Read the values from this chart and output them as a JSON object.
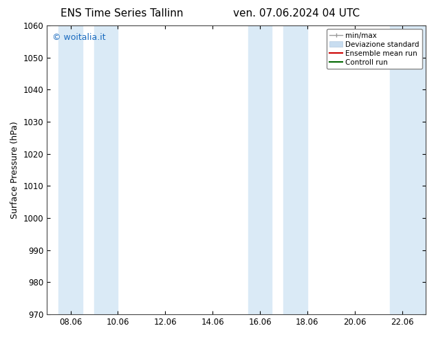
{
  "title_left": "ENS Time Series Tallinn",
  "title_right": "ven. 07.06.2024 04 UTC",
  "ylabel": "Surface Pressure (hPa)",
  "ylim": [
    970,
    1060
  ],
  "yticks": [
    970,
    980,
    990,
    1000,
    1010,
    1020,
    1030,
    1040,
    1050,
    1060
  ],
  "xtick_labels": [
    "08.06",
    "10.06",
    "12.06",
    "14.06",
    "16.06",
    "18.06",
    "20.06",
    "22.06"
  ],
  "xtick_positions": [
    1.0,
    3.0,
    5.0,
    7.0,
    9.0,
    11.0,
    13.0,
    15.0
  ],
  "xlim": [
    0.0,
    16.0
  ],
  "shaded_bands": [
    {
      "x_start": 0.5,
      "x_end": 1.5
    },
    {
      "x_start": 2.0,
      "x_end": 3.0
    },
    {
      "x_start": 8.5,
      "x_end": 9.5
    },
    {
      "x_start": 10.0,
      "x_end": 11.0
    },
    {
      "x_start": 14.5,
      "x_end": 16.0
    }
  ],
  "band_color": "#daeaf6",
  "watermark": "© woitalia.it",
  "watermark_color": "#1a6bbf",
  "watermark_fontsize": 9,
  "bg_color": "#ffffff",
  "plot_bg_color": "#ffffff",
  "legend_entries": [
    {
      "label": "min/max",
      "color": "#999999",
      "lw": 1,
      "style": "errorbar"
    },
    {
      "label": "Deviazione standard",
      "color": "#c8ddf0",
      "lw": 6,
      "style": "band"
    },
    {
      "label": "Ensemble mean run",
      "color": "#cc0000",
      "lw": 1.2,
      "style": "line"
    },
    {
      "label": "Controll run",
      "color": "#006600",
      "lw": 1.2,
      "style": "line"
    }
  ],
  "title_fontsize": 11,
  "axis_label_fontsize": 9,
  "tick_fontsize": 8.5
}
